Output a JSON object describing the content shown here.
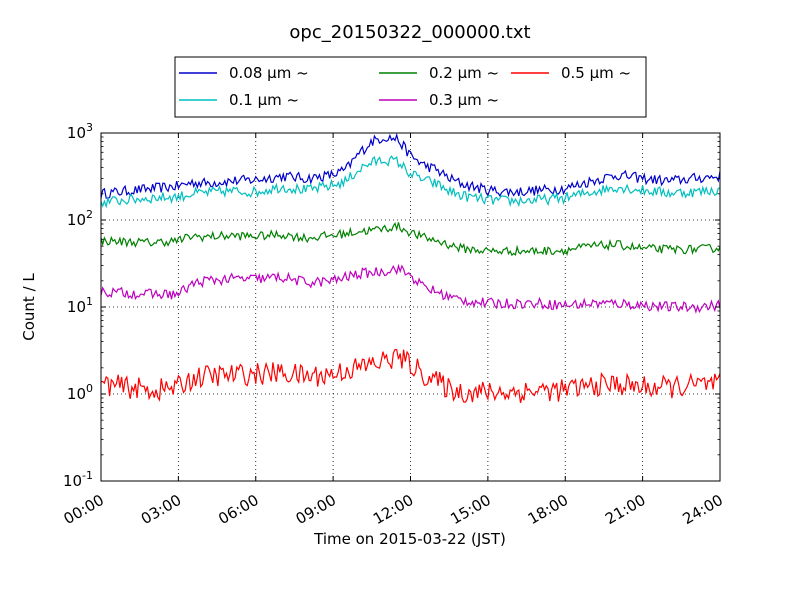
{
  "chart_data": {
    "type": "line",
    "title": "opc_20150322_000000.txt",
    "xlabel": "Time on 2015-03-22 (JST)",
    "ylabel": "Count / L",
    "yscale": "log",
    "grid": true,
    "legend_position": "top",
    "xlim": [
      "00:00",
      "24:00"
    ],
    "ylim": [
      0.1,
      1000
    ],
    "x_ticks": [
      "00:00",
      "03:00",
      "06:00",
      "09:00",
      "12:00",
      "15:00",
      "18:00",
      "21:00",
      "24:00"
    ],
    "y_ticks": [
      {
        "base": "10",
        "exp": "-1"
      },
      {
        "base": "10",
        "exp": "0"
      },
      {
        "base": "10",
        "exp": "1"
      },
      {
        "base": "10",
        "exp": "2"
      },
      {
        "base": "10",
        "exp": "3"
      }
    ],
    "x": [
      "00:00",
      "01:00",
      "02:00",
      "03:00",
      "03:30",
      "04:00",
      "05:00",
      "06:00",
      "07:00",
      "08:00",
      "09:00",
      "09:30",
      "10:00",
      "10:30",
      "11:00",
      "11:30",
      "12:00",
      "12:30",
      "13:00",
      "13:30",
      "14:00",
      "15:00",
      "16:00",
      "17:00",
      "18:00",
      "19:00",
      "20:00",
      "21:00",
      "22:00",
      "23:00",
      "24:00"
    ],
    "series": [
      {
        "name": "0.08 µm ~",
        "color": "#0000cc",
        "values": [
          200,
          215,
          230,
          245,
          270,
          265,
          280,
          290,
          320,
          300,
          330,
          380,
          580,
          800,
          900,
          850,
          550,
          430,
          380,
          300,
          260,
          220,
          210,
          220,
          230,
          280,
          330,
          300,
          280,
          300,
          320
        ]
      },
      {
        "name": "0.1 µm ~",
        "color": "#00bfbf",
        "values": [
          160,
          170,
          180,
          185,
          200,
          205,
          215,
          210,
          240,
          220,
          250,
          280,
          380,
          460,
          490,
          470,
          340,
          290,
          260,
          215,
          190,
          170,
          165,
          170,
          180,
          210,
          240,
          220,
          205,
          210,
          220
        ]
      },
      {
        "name": "0.2 µm ~",
        "color": "#008000",
        "values": [
          58,
          56,
          55,
          58,
          65,
          64,
          66,
          65,
          68,
          62,
          67,
          70,
          74,
          76,
          80,
          85,
          72,
          63,
          58,
          52,
          47,
          44,
          44,
          44,
          45,
          50,
          52,
          47,
          46,
          46,
          48
        ]
      },
      {
        "name": "0.3 µm ~",
        "color": "#bf00bf",
        "values": [
          15,
          14.5,
          14,
          14,
          18,
          20,
          21,
          21,
          22,
          19,
          20,
          22,
          24,
          25,
          26,
          28,
          23,
          17,
          15,
          13,
          12,
          11,
          11,
          11,
          10.5,
          11,
          11,
          10.5,
          10,
          10,
          10.5
        ]
      },
      {
        "name": "0.5 µm ~",
        "color": "#ff0000",
        "values": [
          1.3,
          1.2,
          1.1,
          1.2,
          1.5,
          1.6,
          1.65,
          1.7,
          1.75,
          1.6,
          1.7,
          1.9,
          2.0,
          2.2,
          2.4,
          2.7,
          2.2,
          1.7,
          1.4,
          1.15,
          1.05,
          1.05,
          1.05,
          1.1,
          1.1,
          1.25,
          1.3,
          1.2,
          1.2,
          1.25,
          1.3
        ]
      }
    ]
  }
}
